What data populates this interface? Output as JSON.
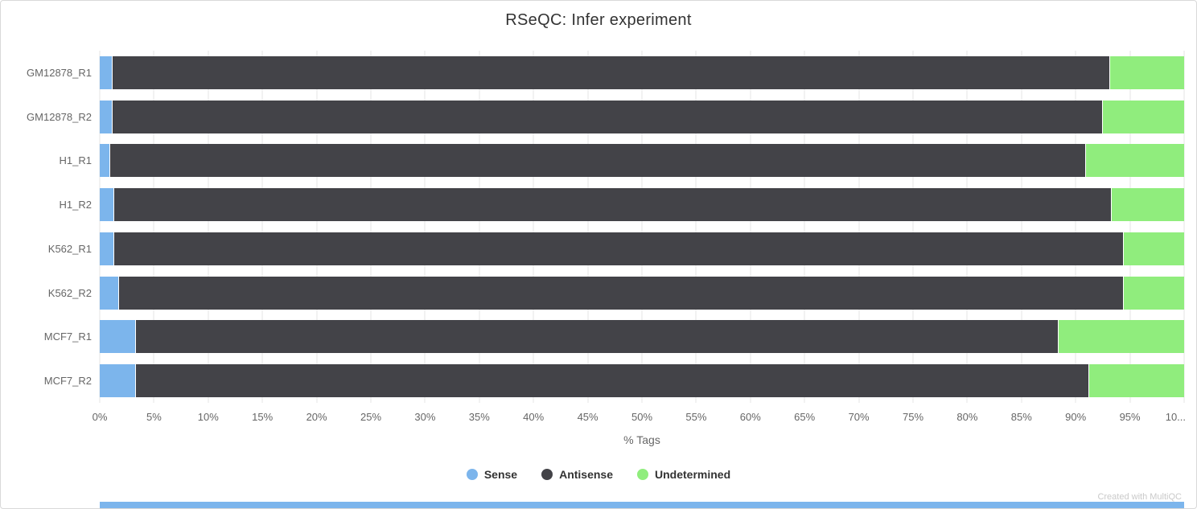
{
  "header": {
    "title": "RSeQC: Infer experiment"
  },
  "footer": {
    "credit": "Created with MultiQC"
  },
  "chart_data": {
    "type": "bar",
    "orientation": "horizontal",
    "stacked": true,
    "title": "RSeQC: Infer experiment",
    "xlabel": "% Tags",
    "xlim": [
      0,
      100
    ],
    "grid": true,
    "legend_position": "bottom",
    "categories": [
      "GM12878_R1",
      "GM12878_R2",
      "H1_R1",
      "H1_R2",
      "K562_R1",
      "K562_R2",
      "MCF7_R1",
      "MCF7_R2"
    ],
    "series": [
      {
        "name": "Sense",
        "color": "#7cb5ec",
        "values": [
          1.1,
          1.1,
          0.9,
          1.3,
          1.3,
          1.7,
          3.3,
          3.3
        ]
      },
      {
        "name": "Antisense",
        "color": "#434348",
        "values": [
          92.1,
          91.4,
          90.0,
          92.0,
          93.1,
          92.7,
          85.1,
          87.9
        ]
      },
      {
        "name": "Undetermined",
        "color": "#90ed7d",
        "values": [
          6.8,
          7.5,
          9.1,
          6.7,
          5.6,
          5.6,
          11.6,
          8.8
        ]
      }
    ],
    "xtick_values": [
      0,
      5,
      10,
      15,
      20,
      25,
      30,
      35,
      40,
      45,
      50,
      55,
      60,
      65,
      70,
      75,
      80,
      85,
      90,
      95,
      100
    ],
    "xtick_labels": [
      "0%",
      "5%",
      "10%",
      "15%",
      "20%",
      "25%",
      "30%",
      "35%",
      "40%",
      "45%",
      "50%",
      "55%",
      "60%",
      "65%",
      "70%",
      "75%",
      "80%",
      "85%",
      "90%",
      "95%",
      "10..."
    ]
  },
  "colors": {
    "grid": "#e6e6e6",
    "axis_text": "#666666",
    "title_text": "#333333",
    "credit_text": "#c9c9c9",
    "bottom_strip": "#7cb5ec"
  }
}
